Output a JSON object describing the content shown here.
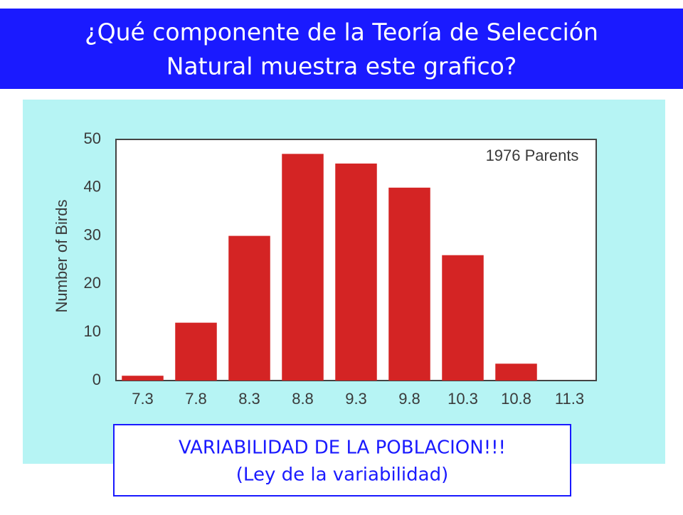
{
  "header": {
    "title_lines": [
      "¿Qué componente de la Teoría de Selección",
      "Natural muestra este grafico?"
    ]
  },
  "chart_data": {
    "type": "bar",
    "annotation": "1976 Parents",
    "y_label": "Number of Birds",
    "categories": [
      "7.3",
      "7.8",
      "8.3",
      "8.8",
      "9.3",
      "9.8",
      "10.3",
      "10.8",
      "11.3"
    ],
    "values": [
      1,
      12,
      30,
      47,
      45,
      40,
      26,
      3.5,
      0
    ],
    "color": "#d42424",
    "ylim": [
      0,
      50
    ],
    "yticks": [
      0,
      10,
      20,
      30,
      40,
      50
    ],
    "grid": false
  },
  "answer": {
    "lines": [
      "VARIABILIDAD DE LA POBLACION!!!",
      "(Ley de la variabilidad)"
    ]
  }
}
